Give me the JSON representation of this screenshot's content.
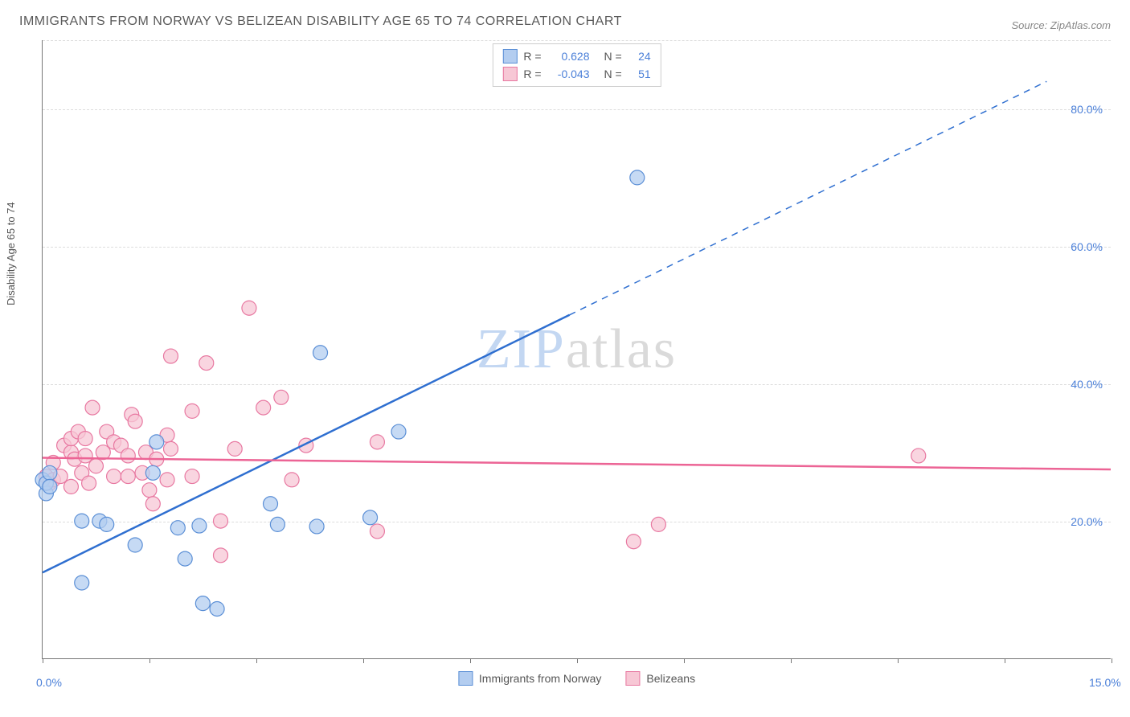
{
  "title": "IMMIGRANTS FROM NORWAY VS BELIZEAN DISABILITY AGE 65 TO 74 CORRELATION CHART",
  "source": "Source: ZipAtlas.com",
  "ylabel": "Disability Age 65 to 74",
  "watermark_zip": "ZIP",
  "watermark_atlas": "atlas",
  "chart": {
    "type": "scatter",
    "xlim": [
      0,
      15
    ],
    "ylim": [
      0,
      90
    ],
    "x_ticks": [
      0,
      1.5,
      3,
      4.5,
      6,
      7.5,
      9,
      10.5,
      12,
      13.5,
      15
    ],
    "x_tick_labels": [
      {
        "pos": 0,
        "text": "0.0%"
      },
      {
        "pos": 15,
        "text": "15.0%"
      }
    ],
    "y_gridlines": [
      20,
      40,
      60,
      80,
      90
    ],
    "y_tick_labels": [
      {
        "pos": 20,
        "text": "20.0%"
      },
      {
        "pos": 40,
        "text": "40.0%"
      },
      {
        "pos": 60,
        "text": "60.0%"
      },
      {
        "pos": 80,
        "text": "80.0%"
      }
    ],
    "background_color": "#ffffff",
    "grid_color": "#dddddd",
    "series": [
      {
        "name": "Immigrants from Norway",
        "marker_fill": "#b3cdf0",
        "marker_stroke": "#5b8fd6",
        "marker_radius": 9,
        "marker_opacity": 0.75,
        "line_color": "#2f6fd0",
        "line_width": 2.5,
        "r_label": "R = ",
        "r_value": "0.628",
        "n_label": "N = ",
        "n_value": "24",
        "trend_solid": {
          "x1": 0,
          "y1": 12.5,
          "x2": 7.4,
          "y2": 50
        },
        "trend_dash": {
          "x1": 7.4,
          "y1": 50,
          "x2": 14.1,
          "y2": 84
        },
        "points": [
          [
            0.0,
            26
          ],
          [
            0.05,
            24
          ],
          [
            0.05,
            25.5
          ],
          [
            0.1,
            27
          ],
          [
            0.1,
            25
          ],
          [
            0.55,
            20
          ],
          [
            0.55,
            11
          ],
          [
            0.8,
            20
          ],
          [
            0.9,
            19.5
          ],
          [
            1.3,
            16.5
          ],
          [
            1.55,
            27
          ],
          [
            1.6,
            31.5
          ],
          [
            1.9,
            19
          ],
          [
            2.0,
            14.5
          ],
          [
            2.2,
            19.3
          ],
          [
            2.25,
            8
          ],
          [
            2.45,
            7.2
          ],
          [
            3.2,
            22.5
          ],
          [
            3.3,
            19.5
          ],
          [
            3.85,
            19.2
          ],
          [
            3.9,
            44.5
          ],
          [
            4.6,
            20.5
          ],
          [
            5.0,
            33
          ],
          [
            8.35,
            70
          ]
        ]
      },
      {
        "name": "Belizeans",
        "marker_fill": "#f7c7d5",
        "marker_stroke": "#e878a1",
        "marker_radius": 9,
        "marker_opacity": 0.75,
        "line_color": "#ec6495",
        "line_width": 2.5,
        "r_label": "R = ",
        "r_value": "-0.043",
        "n_label": "N = ",
        "n_value": "51",
        "trend_solid": {
          "x1": 0,
          "y1": 29.2,
          "x2": 15,
          "y2": 27.5
        },
        "points": [
          [
            0.05,
            26.5
          ],
          [
            0.1,
            25.5
          ],
          [
            0.15,
            28.5
          ],
          [
            0.15,
            26
          ],
          [
            0.25,
            26.5
          ],
          [
            0.3,
            31
          ],
          [
            0.4,
            30
          ],
          [
            0.4,
            32
          ],
          [
            0.4,
            25
          ],
          [
            0.45,
            29
          ],
          [
            0.5,
            33
          ],
          [
            0.55,
            27
          ],
          [
            0.6,
            32
          ],
          [
            0.6,
            29.5
          ],
          [
            0.65,
            25.5
          ],
          [
            0.7,
            36.5
          ],
          [
            0.75,
            28
          ],
          [
            0.85,
            30
          ],
          [
            0.9,
            33
          ],
          [
            1.0,
            26.5
          ],
          [
            1.0,
            31.5
          ],
          [
            1.1,
            31
          ],
          [
            1.2,
            29.5
          ],
          [
            1.2,
            26.5
          ],
          [
            1.25,
            35.5
          ],
          [
            1.3,
            34.5
          ],
          [
            1.4,
            27
          ],
          [
            1.45,
            30
          ],
          [
            1.5,
            24.5
          ],
          [
            1.55,
            22.5
          ],
          [
            1.6,
            29
          ],
          [
            1.75,
            32.5
          ],
          [
            1.75,
            26
          ],
          [
            1.8,
            44
          ],
          [
            1.8,
            30.5
          ],
          [
            2.1,
            36
          ],
          [
            2.1,
            26.5
          ],
          [
            2.3,
            43
          ],
          [
            2.5,
            15
          ],
          [
            2.5,
            20
          ],
          [
            2.7,
            30.5
          ],
          [
            2.9,
            51
          ],
          [
            3.1,
            36.5
          ],
          [
            3.35,
            38
          ],
          [
            3.5,
            26
          ],
          [
            3.7,
            31
          ],
          [
            4.7,
            31.5
          ],
          [
            4.7,
            18.5
          ],
          [
            8.3,
            17
          ],
          [
            8.65,
            19.5
          ],
          [
            12.3,
            29.5
          ]
        ]
      }
    ]
  },
  "legend_bottom": [
    {
      "label": "Immigrants from Norway",
      "fill": "#b3cdf0",
      "stroke": "#5b8fd6"
    },
    {
      "label": "Belizeans",
      "fill": "#f7c7d5",
      "stroke": "#e878a1"
    }
  ]
}
